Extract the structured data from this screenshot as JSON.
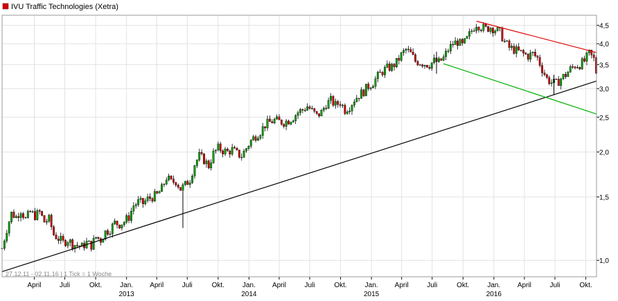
{
  "chart_data": {
    "type": "candlestick",
    "title": "IVU Traffic Technologies (Xetra)",
    "footer": "27.12.11 - 02.11.16  |  1 Tick = 1 Woche",
    "y_scale": "log",
    "ylim": [
      0.9,
      4.8
    ],
    "grid": true,
    "x_range": [
      "2011-12-27",
      "2016-11-02"
    ],
    "y_ticks": [
      "1,0",
      "1,5",
      "2,0",
      "2,5",
      "3,0",
      "3,5",
      "4,0",
      "4,5"
    ],
    "y_tick_values": [
      1.0,
      1.5,
      2.0,
      2.5,
      3.0,
      3.5,
      4.0,
      4.5
    ],
    "x_ticks": [
      {
        "date": "2012-04-01",
        "label": "April"
      },
      {
        "date": "2012-07-01",
        "label": "Juli"
      },
      {
        "date": "2012-10-01",
        "label": "Okt."
      },
      {
        "date": "2013-01-01",
        "label": "Jan."
      },
      {
        "date": "2013-04-01",
        "label": "April"
      },
      {
        "date": "2013-07-01",
        "label": "Juli"
      },
      {
        "date": "2013-10-01",
        "label": "Okt."
      },
      {
        "date": "2014-01-01",
        "label": "Jan."
      },
      {
        "date": "2014-04-01",
        "label": "April"
      },
      {
        "date": "2014-07-01",
        "label": "Juli"
      },
      {
        "date": "2014-10-01",
        "label": "Okt."
      },
      {
        "date": "2015-01-01",
        "label": "Jan."
      },
      {
        "date": "2015-04-01",
        "label": "April"
      },
      {
        "date": "2015-07-01",
        "label": "Juli"
      },
      {
        "date": "2015-10-01",
        "label": "Okt."
      },
      {
        "date": "2016-01-01",
        "label": "Jan."
      },
      {
        "date": "2016-04-01",
        "label": "April"
      },
      {
        "date": "2016-07-01",
        "label": "Juli"
      },
      {
        "date": "2016-10-01",
        "label": "Okt."
      }
    ],
    "year_labels": [
      {
        "date": "2013-01-01",
        "label": "2013"
      },
      {
        "date": "2014-01-01",
        "label": "2014"
      },
      {
        "date": "2015-01-01",
        "label": "2015"
      },
      {
        "date": "2016-01-01",
        "label": "2016"
      }
    ],
    "close_path": [
      [
        "2011-12-27",
        1.08
      ],
      [
        "2012-01-10",
        1.22
      ],
      [
        "2012-01-24",
        1.35
      ],
      [
        "2012-02-07",
        1.32
      ],
      [
        "2012-02-21",
        1.38
      ],
      [
        "2012-03-06",
        1.3
      ],
      [
        "2012-03-20",
        1.36
      ],
      [
        "2012-04-03",
        1.33
      ],
      [
        "2012-04-17",
        1.36
      ],
      [
        "2012-05-01",
        1.28
      ],
      [
        "2012-05-15",
        1.3
      ],
      [
        "2012-05-29",
        1.18
      ],
      [
        "2012-06-12",
        1.15
      ],
      [
        "2012-06-26",
        1.12
      ],
      [
        "2012-07-10",
        1.14
      ],
      [
        "2012-07-24",
        1.11
      ],
      [
        "2012-08-07",
        1.1
      ],
      [
        "2012-08-21",
        1.09
      ],
      [
        "2012-09-04",
        1.12
      ],
      [
        "2012-09-18",
        1.1
      ],
      [
        "2012-10-02",
        1.16
      ],
      [
        "2012-10-16",
        1.14
      ],
      [
        "2012-10-30",
        1.2
      ],
      [
        "2012-11-13",
        1.22
      ],
      [
        "2012-11-27",
        1.27
      ],
      [
        "2012-12-11",
        1.26
      ],
      [
        "2012-12-25",
        1.28
      ],
      [
        "2013-01-08",
        1.32
      ],
      [
        "2013-01-22",
        1.42
      ],
      [
        "2013-02-05",
        1.45
      ],
      [
        "2013-02-19",
        1.44
      ],
      [
        "2013-03-05",
        1.48
      ],
      [
        "2013-03-19",
        1.5
      ],
      [
        "2013-04-02",
        1.52
      ],
      [
        "2013-04-16",
        1.58
      ],
      [
        "2013-04-30",
        1.7
      ],
      [
        "2013-05-14",
        1.65
      ],
      [
        "2013-05-28",
        1.66
      ],
      [
        "2013-06-11",
        1.58
      ],
      [
        "2013-06-25",
        1.62
      ],
      [
        "2013-07-09",
        1.68
      ],
      [
        "2013-07-23",
        1.85
      ],
      [
        "2013-08-06",
        1.95
      ],
      [
        "2013-08-20",
        1.9
      ],
      [
        "2013-09-03",
        1.83
      ],
      [
        "2013-09-17",
        1.98
      ],
      [
        "2013-10-01",
        2.05
      ],
      [
        "2013-10-15",
        2.02
      ],
      [
        "2013-10-29",
        2.0
      ],
      [
        "2013-11-12",
        2.03
      ],
      [
        "2013-11-26",
        1.98
      ],
      [
        "2013-12-10",
        1.95
      ],
      [
        "2013-12-24",
        2.05
      ],
      [
        "2014-01-07",
        2.15
      ],
      [
        "2014-01-21",
        2.22
      ],
      [
        "2014-02-04",
        2.28
      ],
      [
        "2014-02-18",
        2.38
      ],
      [
        "2014-03-04",
        2.42
      ],
      [
        "2014-03-18",
        2.45
      ],
      [
        "2014-04-01",
        2.43
      ],
      [
        "2014-04-15",
        2.42
      ],
      [
        "2014-04-29",
        2.45
      ],
      [
        "2014-05-13",
        2.5
      ],
      [
        "2014-05-27",
        2.58
      ],
      [
        "2014-06-10",
        2.62
      ],
      [
        "2014-06-24",
        2.68
      ],
      [
        "2014-07-08",
        2.6
      ],
      [
        "2014-07-22",
        2.52
      ],
      [
        "2014-08-05",
        2.58
      ],
      [
        "2014-08-19",
        2.72
      ],
      [
        "2014-09-02",
        2.78
      ],
      [
        "2014-09-16",
        2.7
      ],
      [
        "2014-09-30",
        2.75
      ],
      [
        "2014-10-14",
        2.62
      ],
      [
        "2014-10-28",
        2.68
      ],
      [
        "2014-11-11",
        2.8
      ],
      [
        "2014-11-25",
        2.88
      ],
      [
        "2014-12-09",
        2.95
      ],
      [
        "2014-12-23",
        3.05
      ],
      [
        "2015-01-06",
        3.12
      ],
      [
        "2015-01-20",
        3.25
      ],
      [
        "2015-02-03",
        3.35
      ],
      [
        "2015-02-17",
        3.42
      ],
      [
        "2015-03-03",
        3.45
      ],
      [
        "2015-03-17",
        3.55
      ],
      [
        "2015-03-31",
        3.72
      ],
      [
        "2015-04-14",
        3.85
      ],
      [
        "2015-04-28",
        3.75
      ],
      [
        "2015-05-12",
        3.58
      ],
      [
        "2015-05-26",
        3.55
      ],
      [
        "2015-06-09",
        3.52
      ],
      [
        "2015-06-23",
        3.5
      ],
      [
        "2015-07-07",
        3.58
      ],
      [
        "2015-07-21",
        3.55
      ],
      [
        "2015-08-04",
        3.65
      ],
      [
        "2015-08-18",
        3.85
      ],
      [
        "2015-09-01",
        4.0
      ],
      [
        "2015-09-15",
        4.05
      ],
      [
        "2015-09-29",
        3.95
      ],
      [
        "2015-10-13",
        4.12
      ],
      [
        "2015-10-27",
        4.35
      ],
      [
        "2015-11-10",
        4.55
      ],
      [
        "2015-11-24",
        4.45
      ],
      [
        "2015-12-08",
        4.4
      ],
      [
        "2015-12-22",
        4.45
      ],
      [
        "2016-01-05",
        4.38
      ],
      [
        "2016-01-19",
        4.3
      ],
      [
        "2016-02-02",
        4.05
      ],
      [
        "2016-02-16",
        3.9
      ],
      [
        "2016-03-01",
        3.85
      ],
      [
        "2016-03-15",
        3.8
      ],
      [
        "2016-03-29",
        3.75
      ],
      [
        "2016-04-12",
        3.7
      ],
      [
        "2016-04-26",
        3.75
      ],
      [
        "2016-05-10",
        3.65
      ],
      [
        "2016-05-24",
        3.4
      ],
      [
        "2016-06-07",
        3.2
      ],
      [
        "2016-06-21",
        3.12
      ],
      [
        "2016-07-05",
        3.1
      ],
      [
        "2016-07-19",
        3.2
      ],
      [
        "2016-08-02",
        3.28
      ],
      [
        "2016-08-16",
        3.4
      ],
      [
        "2016-08-30",
        3.48
      ],
      [
        "2016-09-13",
        3.5
      ],
      [
        "2016-09-27",
        3.58
      ],
      [
        "2016-10-11",
        3.75
      ],
      [
        "2016-10-25",
        3.62
      ],
      [
        "2016-11-02",
        3.3
      ]
    ],
    "spikes": [
      {
        "date": "2013-06-18",
        "low": 1.23,
        "high": 1.55
      },
      {
        "date": "2015-07-14",
        "low": 3.3,
        "high": 3.8
      },
      {
        "date": "2016-06-28",
        "low": 2.88,
        "high": 3.28
      },
      {
        "date": "2016-11-02",
        "low": 3.08,
        "high": 3.62
      }
    ],
    "trendlines": [
      {
        "color": "#000000",
        "from": [
          "2011-12-27",
          0.93
        ],
        "to": [
          "2016-11-02",
          3.15
        ]
      },
      {
        "color": "#e00000",
        "from": [
          "2015-11-10",
          4.62
        ],
        "to": [
          "2016-11-02",
          3.78
        ]
      },
      {
        "color": "#00b000",
        "from": [
          "2015-08-04",
          3.52
        ],
        "to": [
          "2016-11-02",
          2.55
        ]
      }
    ],
    "colors": {
      "up": "#00a000",
      "down": "#d00000",
      "grid": "#e2e2e2",
      "axis": "#000000"
    }
  }
}
